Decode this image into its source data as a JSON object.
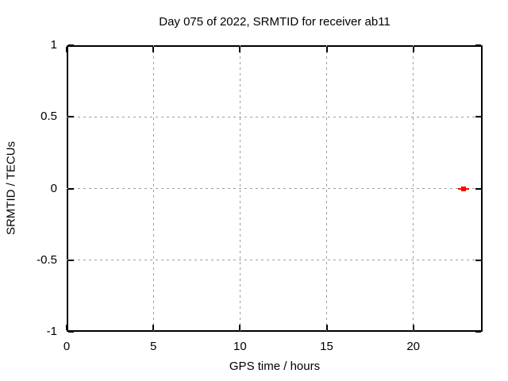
{
  "title": "Day 075 of 2022, SRMTID for receiver ab11",
  "colors": {
    "background": "#ffffff",
    "axis": "#000000",
    "grid": "#9e9e9e",
    "marker": "#ff0000"
  },
  "chart_data": {
    "type": "scatter",
    "title": "Day 075 of 2022, SRMTID for receiver ab11",
    "xlabel": "GPS time / hours",
    "ylabel": "SRMTID / TECUs",
    "xlim": [
      0,
      24
    ],
    "ylim": [
      -1,
      1
    ],
    "xticks": [
      0,
      5,
      10,
      15,
      20
    ],
    "yticks": [
      -1,
      -0.5,
      0,
      0.5,
      1
    ],
    "grid": true,
    "legend_position": "none",
    "series": [
      {
        "name": "SRMTID",
        "marker": "square",
        "color": "#ff0000",
        "points": [
          {
            "x": 22.9,
            "y": 0.0,
            "xerr": 0.3
          }
        ]
      }
    ]
  }
}
